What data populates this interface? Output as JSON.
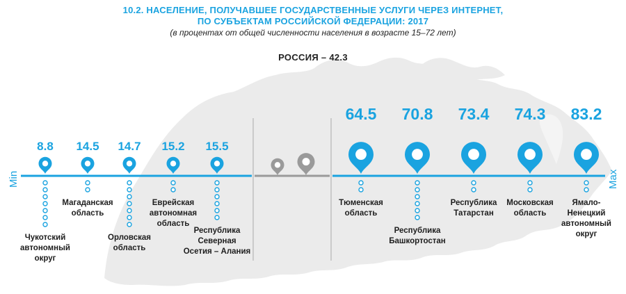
{
  "header": {
    "title_line1": "10.2. НАСЕЛЕНИЕ, ПОЛУЧАВШЕЕ ГОСУДАРСТВЕННЫЕ УСЛУГИ ЧЕРЕЗ ИНТЕРНЕТ,",
    "title_line2": "ПО СУБЪЕКТАМ РОССИЙСКОЙ ФЕДЕРАЦИИ: 2017",
    "subtitle": "(в процентах от общей численности населения в возрасте 15–72 лет)",
    "russia_label": "РОССИЯ – 42.3"
  },
  "axis": {
    "min_label": "Min",
    "max_label": "Max"
  },
  "colors": {
    "accent": "#1aa3e0",
    "grey_pin": "#9a9a9a",
    "map": "#ebebeb",
    "divider": "#a8a8a8"
  },
  "chart_data": {
    "type": "scatter",
    "title": "10.2. НАСЕЛЕНИЕ, ПОЛУЧАВШЕЕ ГОСУДАРСТВЕННЫЕ УСЛУГИ ЧЕРЕЗ ИНТЕРНЕТ, ПО СУБЪЕКТАМ РОССИЙСКОЙ ФЕДЕРАЦИИ: 2017",
    "subtitle": "(в процентах от общей численности населения в возрасте 15–72 лет)",
    "reference": {
      "label": "РОССИЯ – 42.3",
      "value": 42.3
    },
    "min_group": [
      {
        "region": [
          "Чукотский",
          "автономный",
          "округ"
        ],
        "value": 8.8,
        "value_label": "8.8"
      },
      {
        "region": [
          "Магаданская",
          "область"
        ],
        "value": 14.5,
        "value_label": "14.5"
      },
      {
        "region": [
          "Орловская",
          "область"
        ],
        "value": 14.7,
        "value_label": "14.7"
      },
      {
        "region": [
          "Еврейская",
          "автономная",
          "область"
        ],
        "value": 15.2,
        "value_label": "15.2"
      },
      {
        "region": [
          "Республика",
          "Северная",
          "Осетия – Алания"
        ],
        "value": 15.5,
        "value_label": "15.5"
      }
    ],
    "max_group": [
      {
        "region": [
          "Тюменская",
          "область"
        ],
        "value": 64.5,
        "value_label": "64.5"
      },
      {
        "region": [
          "Республика",
          "Башкортостан"
        ],
        "value": 70.8,
        "value_label": "70.8"
      },
      {
        "region": [
          "Республика",
          "Татарстан"
        ],
        "value": 73.4,
        "value_label": "73.4"
      },
      {
        "region": [
          "Московская",
          "область"
        ],
        "value": 74.3,
        "value_label": "74.3"
      },
      {
        "region": [
          "Ямало-",
          "Ненецкий",
          "автономный",
          "округ"
        ],
        "value": 83.2,
        "value_label": "83.2"
      }
    ]
  }
}
